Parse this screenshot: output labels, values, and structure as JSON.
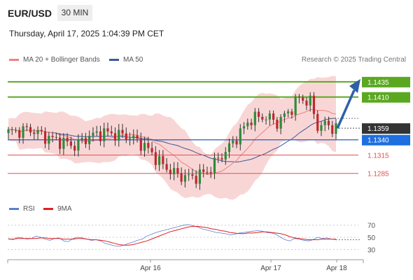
{
  "header": {
    "symbol": "EUR/USD",
    "timeframe": "30 MIN",
    "datetime": "Thursday, April 17, 2025 1:04:39 PM CET"
  },
  "legend": {
    "ma20": "MA 20 + Bollinger Bands",
    "ma50": "MA 50",
    "credit": "Research © 2025 Trading Central"
  },
  "rsi_legend": {
    "rsi": "RSI",
    "ma": "9MA"
  },
  "colors": {
    "resistance": "#5aa820",
    "support": "#2e5bab",
    "target_red": "#e05050",
    "bollinger": "#f7c5c5",
    "ma20": "#f08080",
    "ma50": "#3a5a98",
    "candle_up": "#2e8b3a",
    "candle_down": "#c0282d",
    "current": "#333333"
  },
  "chart_data": [
    {
      "type": "candlestick",
      "x_labels": [
        "Apr 16",
        "Apr 17",
        "Apr 18"
      ],
      "series": [
        {
          "name": "EUR/USD"
        },
        {
          "name": "MA 20 + Bollinger Bands"
        },
        {
          "name": "MA 50"
        }
      ],
      "ylim": [
        1.124,
        1.146
      ],
      "current_price": 1.1359,
      "levels": [
        {
          "value": 1.1435,
          "label": "1.1435",
          "kind": "resistance"
        },
        {
          "value": 1.141,
          "label": "1.1410",
          "kind": "resistance"
        },
        {
          "value": 1.134,
          "label": "1.1340",
          "kind": "support"
        },
        {
          "value": 1.1315,
          "label": "1.1315",
          "kind": "target"
        },
        {
          "value": 1.1285,
          "label": "1.1285",
          "kind": "target"
        }
      ],
      "current_label": "1.1359",
      "projection": {
        "from": 1.1359,
        "to": 1.1435
      }
    },
    {
      "type": "line",
      "series": [
        {
          "name": "RSI"
        },
        {
          "name": "9MA"
        }
      ],
      "ylim": [
        20,
        80
      ],
      "y_ticks": [
        "70",
        "50",
        "30"
      ],
      "rsi_values": [
        48,
        46,
        50,
        49,
        47,
        48,
        52,
        50,
        47,
        45,
        48,
        49,
        44,
        43,
        48,
        50,
        49,
        47,
        45,
        46,
        44,
        40,
        38,
        36,
        35,
        37,
        40,
        42,
        45,
        47,
        52,
        55,
        58,
        60,
        62,
        64,
        66,
        68,
        70,
        71,
        69,
        67,
        64,
        62,
        60,
        58,
        57,
        56,
        54,
        55,
        57,
        58,
        59,
        60,
        61,
        60,
        58,
        57,
        55,
        50,
        46,
        44,
        48,
        47,
        45,
        44,
        46,
        50,
        48,
        49,
        47,
        46
      ],
      "ma_values": [
        47,
        47,
        48,
        48,
        48,
        48,
        48,
        49,
        49,
        48,
        48,
        48,
        47,
        47,
        47,
        48,
        48,
        47,
        46,
        46,
        45,
        44,
        42,
        40,
        38,
        37,
        37,
        38,
        40,
        42,
        44,
        47,
        50,
        53,
        56,
        59,
        61,
        63,
        65,
        67,
        68,
        68,
        67,
        66,
        64,
        63,
        61,
        60,
        58,
        57,
        56,
        56,
        57,
        57,
        58,
        59,
        59,
        58,
        57,
        56,
        54,
        51,
        49,
        48,
        47,
        46,
        46,
        46,
        47,
        47,
        47,
        47
      ]
    }
  ]
}
